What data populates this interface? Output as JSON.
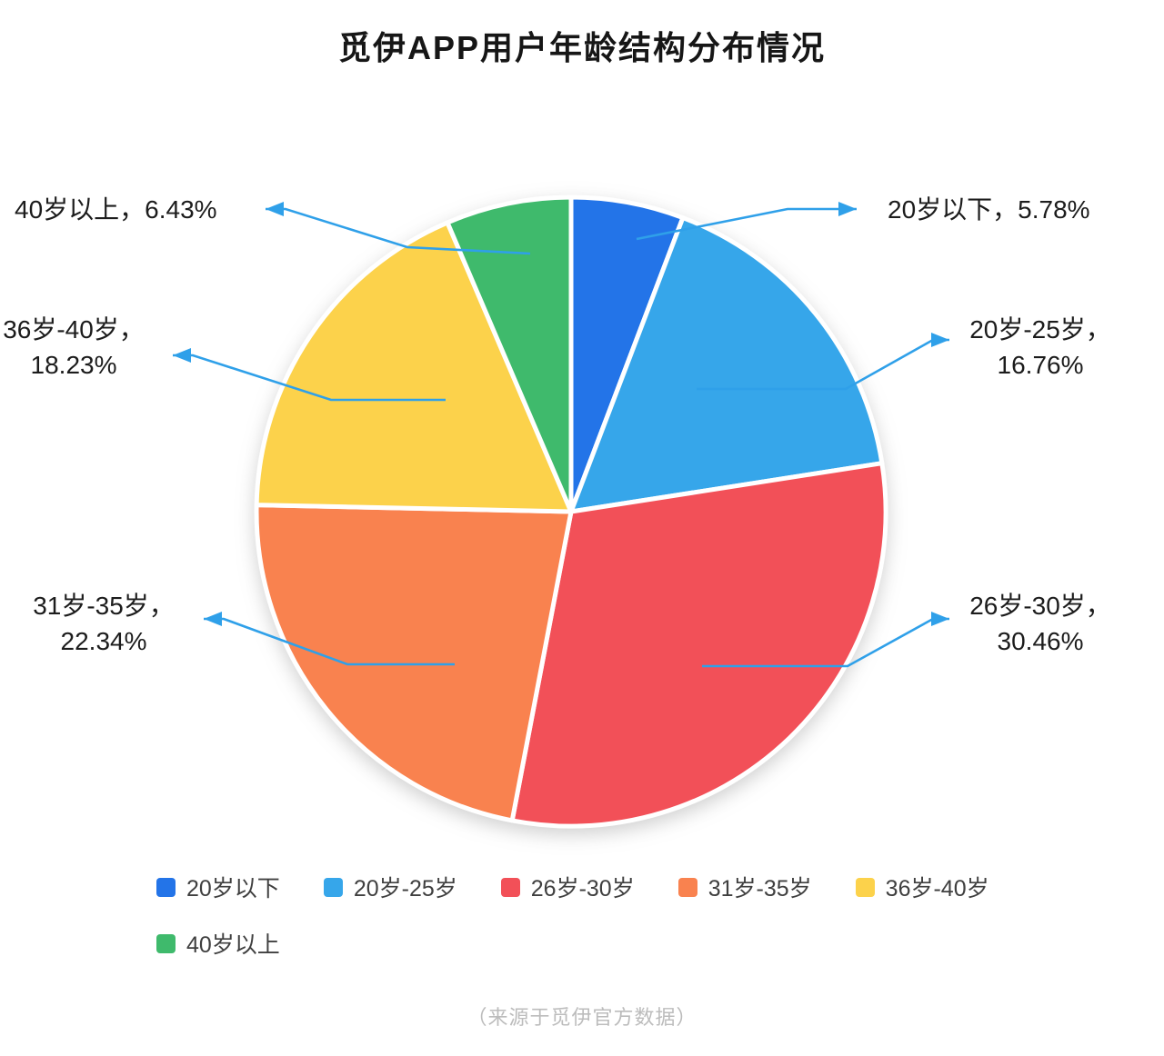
{
  "title": "觅伊APP用户年龄结构分布情况",
  "source_note": "（来源于觅伊官方数据）",
  "chart_data": {
    "type": "pie",
    "title": "觅伊APP用户年龄结构分布情况",
    "unit": "%",
    "start_angle_deg": -90,
    "direction": "clockwise",
    "legend_position": "bottom-left",
    "callout_color": "#2FA0E9",
    "segments": [
      {
        "label": "20岁以下",
        "value": 5.78,
        "color": "#2374E8"
      },
      {
        "label": "20岁-25岁",
        "value": 16.76,
        "color": "#36A6EA"
      },
      {
        "label": "26岁-30岁",
        "value": 30.46,
        "color": "#F25058"
      },
      {
        "label": "31岁-35岁",
        "value": 22.34,
        "color": "#F9824F"
      },
      {
        "label": "36岁-40岁",
        "value": 18.23,
        "color": "#FCD24B"
      },
      {
        "label": "40岁以上",
        "value": 6.43,
        "color": "#3FBA6C"
      }
    ],
    "callouts": [
      {
        "segment": "20岁以下",
        "text": "20岁以下，5.78%"
      },
      {
        "segment": "20岁-25岁",
        "text": "20岁-25岁，\n16.76%"
      },
      {
        "segment": "26岁-30岁",
        "text": "26岁-30岁，\n30.46%"
      },
      {
        "segment": "31岁-35岁",
        "text": "31岁-35岁，\n22.34%"
      },
      {
        "segment": "36岁-40岁",
        "text": "36岁-40岁，\n18.23%"
      },
      {
        "segment": "40岁以上",
        "text": "40岁以上，6.43%"
      }
    ]
  }
}
